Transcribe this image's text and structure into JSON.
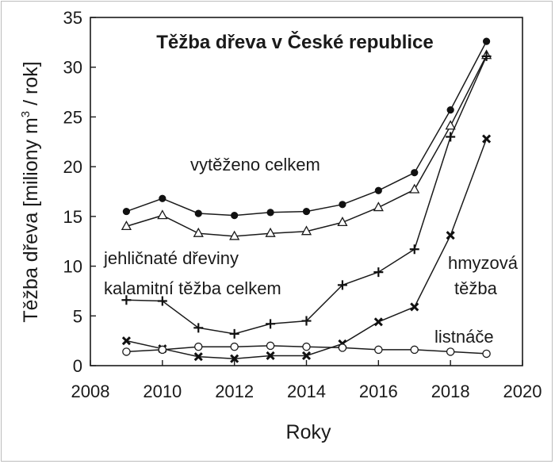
{
  "chart_data": {
    "type": "line",
    "title": "Těžba dřeva v České republice",
    "xlabel": "Roky",
    "ylabel": "Těžba dřeva [miliony m",
    "ylabel_sup": "3",
    "ylabel_suffix": " / rok]",
    "xlim": [
      2008,
      2020
    ],
    "ylim": [
      0,
      35
    ],
    "xticks": [
      2008,
      2010,
      2012,
      2014,
      2016,
      2018,
      2020
    ],
    "yticks": [
      0,
      5,
      10,
      15,
      20,
      25,
      30,
      35
    ],
    "grid": false,
    "legend": "none",
    "x": [
      2009,
      2010,
      2011,
      2012,
      2013,
      2014,
      2015,
      2016,
      2017,
      2018,
      2019
    ],
    "series": [
      {
        "marker": "filled-circle",
        "values": [
          15.5,
          16.8,
          15.3,
          15.1,
          15.4,
          15.5,
          16.2,
          17.6,
          19.4,
          25.7,
          32.6
        ]
      },
      {
        "marker": "open-triangle",
        "values": [
          14.0,
          15.1,
          13.3,
          13.0,
          13.3,
          13.5,
          14.4,
          15.9,
          17.7,
          24.1,
          31.2
        ]
      },
      {
        "marker": "plus",
        "values": [
          6.6,
          6.5,
          3.8,
          3.2,
          4.2,
          4.5,
          8.1,
          9.4,
          11.7,
          23.0,
          31.1
        ]
      },
      {
        "marker": "cross",
        "values": [
          2.5,
          1.7,
          0.9,
          0.7,
          1.0,
          1.0,
          2.2,
          4.4,
          5.9,
          13.1,
          22.8
        ]
      },
      {
        "marker": "open-circle",
        "values": [
          1.4,
          1.6,
          1.9,
          1.9,
          2.0,
          1.9,
          1.8,
          1.6,
          1.6,
          1.4,
          1.2
        ]
      }
    ],
    "annotations": [
      {
        "text": "vytěženo celkem"
      },
      {
        "text": "jehličnaté dřeviny"
      },
      {
        "text": "kalamitní těžba celkem"
      },
      {
        "text": "hmyzová"
      },
      {
        "text": "těžba"
      },
      {
        "text": "listnáče"
      }
    ]
  }
}
